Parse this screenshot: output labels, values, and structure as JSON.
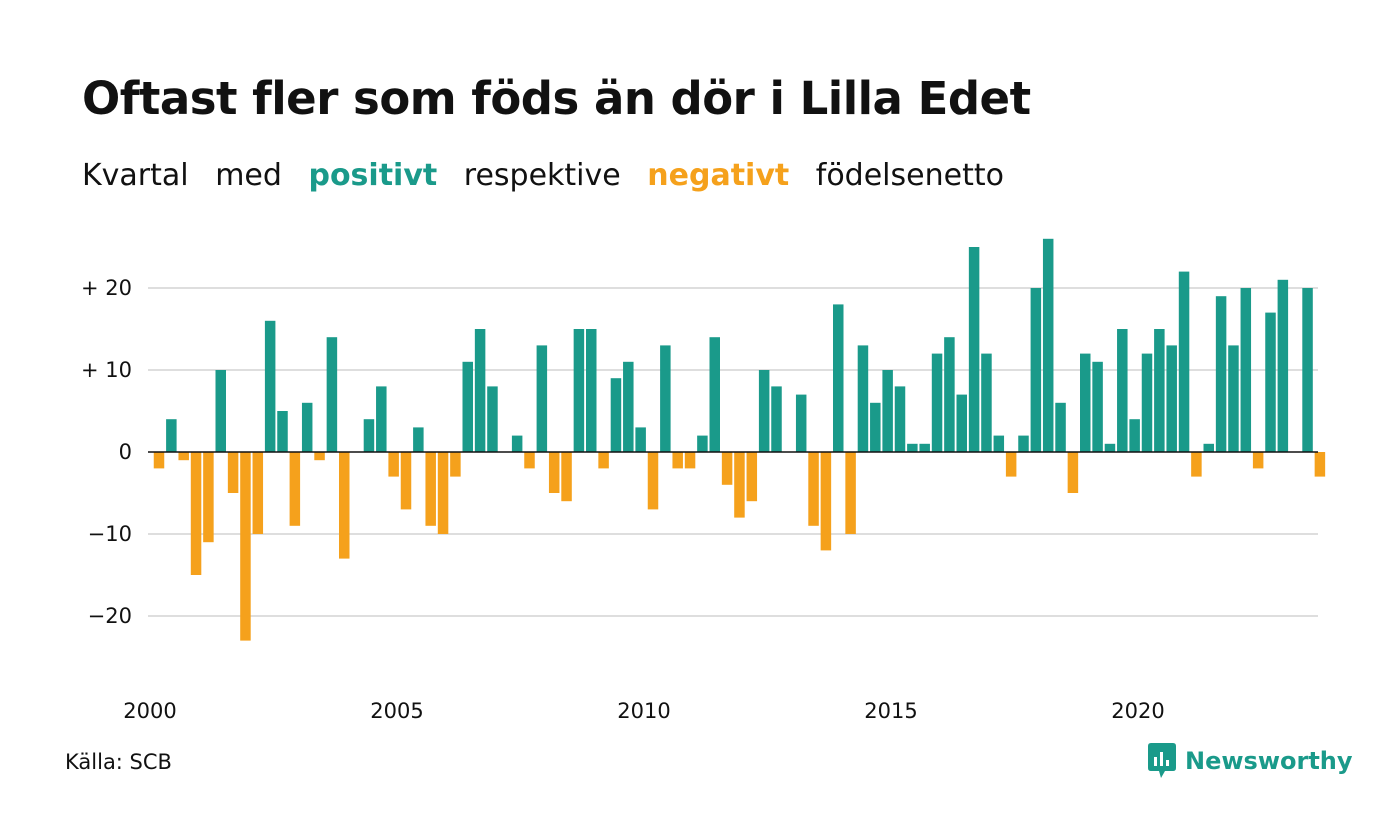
{
  "title": "Oftast fler som föds än dör i Lilla Edet",
  "subtitle": {
    "part1": "Kvartal",
    "part2": "med",
    "positive_word": "positivt",
    "part3": "respektive",
    "negative_word": "negativt",
    "part4": "födelsenetto"
  },
  "colors": {
    "positive": "#1a9a8a",
    "negative": "#f5a11c",
    "grid": "#dedede",
    "zero_line": "#111111"
  },
  "source": "Källa: SCB",
  "brand": {
    "name": "Newsworthy",
    "icon": "newsworthy-logo-icon"
  },
  "chart_data": {
    "type": "bar",
    "x_start": 2000,
    "x_step": 0.25,
    "values": [
      -2,
      4,
      -1,
      -15,
      -11,
      10,
      -5,
      -23,
      -10,
      16,
      5,
      -9,
      6,
      -1,
      14,
      -13,
      0,
      4,
      8,
      -3,
      -7,
      3,
      -9,
      -10,
      -3,
      11,
      15,
      8,
      0,
      2,
      -2,
      13,
      -5,
      -6,
      15,
      15,
      -2,
      9,
      11,
      3,
      -7,
      13,
      -2,
      -2,
      2,
      14,
      -4,
      -8,
      -6,
      10,
      8,
      0,
      7,
      -9,
      -12,
      18,
      -10,
      13,
      6,
      10,
      8,
      1,
      1,
      12,
      14,
      7,
      25,
      12,
      2,
      -3,
      2,
      20,
      26,
      6,
      -5,
      12,
      11,
      1,
      15,
      4,
      12,
      15,
      13,
      22,
      -3,
      1,
      19,
      13,
      20,
      -2,
      17,
      21,
      0,
      20,
      -3
    ],
    "xticks": [
      2000,
      2005,
      2010,
      2015,
      2020
    ],
    "yticks": [
      {
        "value": 20,
        "label": "+ 20"
      },
      {
        "value": 10,
        "label": "+ 10"
      },
      {
        "value": 0,
        "label": "0"
      },
      {
        "value": -10,
        "label": "−10"
      },
      {
        "value": -20,
        "label": "−20"
      }
    ],
    "ylim": [
      -28,
      28
    ],
    "grid": true
  }
}
